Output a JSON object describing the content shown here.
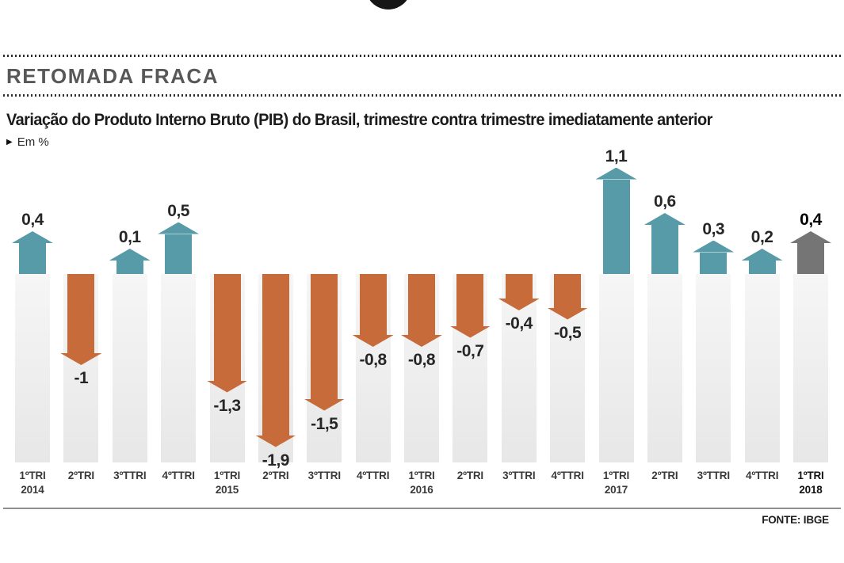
{
  "page": {
    "section_title": "RETOMADA FRACA",
    "chart_title": "Variação do Produto Interno Bruto (PIB) do Brasil, trimestre contra trimestre imediatamente anterior",
    "unit_marker": "▶",
    "unit_label": "Em %",
    "source": "FONTE: IBGE"
  },
  "colors": {
    "positive": "#579BA8",
    "negative": "#C76B3A",
    "highlight": "#757575",
    "column_bg": "#ECECEC",
    "title_gray": "#58585A"
  },
  "chart_data": {
    "type": "bar",
    "title": "Variação do Produto Interno Bruto (PIB) do Brasil, trimestre contra trimestre imediatamente anterior",
    "ylabel": "Em %",
    "ylim": [
      -1.9,
      1.1
    ],
    "grid": false,
    "legend": "none",
    "source": "FONTE: IBGE",
    "bars": [
      {
        "quarter": "1ºTRI",
        "year": "2014",
        "value": 0.4,
        "label": "0,4",
        "color": "positive",
        "emphasis": false
      },
      {
        "quarter": "2ºTRI",
        "year": "",
        "value": -1.0,
        "label": "-1",
        "color": "negative",
        "emphasis": false
      },
      {
        "quarter": "3ºTTRI",
        "year": "",
        "value": 0.1,
        "label": "0,1",
        "color": "positive",
        "emphasis": false
      },
      {
        "quarter": "4ºTTRI",
        "year": "",
        "value": 0.5,
        "label": "0,5",
        "color": "positive",
        "emphasis": false
      },
      {
        "quarter": "1ºTRI",
        "year": "2015",
        "value": -1.3,
        "label": "-1,3",
        "color": "negative",
        "emphasis": false
      },
      {
        "quarter": "2ºTRI",
        "year": "",
        "value": -1.9,
        "label": "-1,9",
        "color": "negative",
        "emphasis": false
      },
      {
        "quarter": "3ºTTRI",
        "year": "",
        "value": -1.5,
        "label": "-1,5",
        "color": "negative",
        "emphasis": false
      },
      {
        "quarter": "4ºTTRI",
        "year": "",
        "value": -0.8,
        "label": "-0,8",
        "color": "negative",
        "emphasis": false
      },
      {
        "quarter": "1ºTRI",
        "year": "2016",
        "value": -0.8,
        "label": "-0,8",
        "color": "negative",
        "emphasis": false
      },
      {
        "quarter": "2ºTRI",
        "year": "",
        "value": -0.7,
        "label": "-0,7",
        "color": "negative",
        "emphasis": false
      },
      {
        "quarter": "3ºTTRI",
        "year": "",
        "value": -0.4,
        "label": "-0,4",
        "color": "negative",
        "emphasis": false
      },
      {
        "quarter": "4ºTTRI",
        "year": "",
        "value": -0.5,
        "label": "-0,5",
        "color": "negative",
        "emphasis": false
      },
      {
        "quarter": "1ºTRI",
        "year": "2017",
        "value": 1.1,
        "label": "1,1",
        "color": "positive",
        "emphasis": false
      },
      {
        "quarter": "2ºTRI",
        "year": "",
        "value": 0.6,
        "label": "0,6",
        "color": "positive",
        "emphasis": false
      },
      {
        "quarter": "3ºTTRI",
        "year": "",
        "value": 0.3,
        "label": "0,3",
        "color": "positive",
        "emphasis": false
      },
      {
        "quarter": "4ºTTRI",
        "year": "",
        "value": 0.2,
        "label": "0,2",
        "color": "positive",
        "emphasis": false
      },
      {
        "quarter": "1ºTRI",
        "year": "2018",
        "value": 0.4,
        "label": "0,4",
        "color": "highlight",
        "emphasis": true
      }
    ]
  }
}
